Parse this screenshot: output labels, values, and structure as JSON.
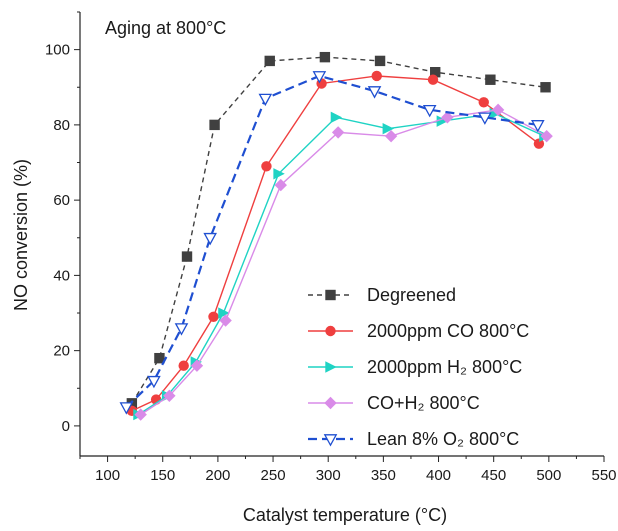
{
  "chart_data": {
    "type": "line",
    "title": "",
    "annotation": "Aging at 800°C",
    "xlabel": "Catalyst temperature (°C)",
    "ylabel": "NO conversion (%)",
    "xlim": [
      75,
      550
    ],
    "ylim": [
      -8,
      110
    ],
    "x_ticks": [
      100,
      150,
      200,
      250,
      300,
      350,
      400,
      450,
      500,
      550
    ],
    "y_ticks": [
      0,
      20,
      40,
      60,
      80,
      100
    ],
    "grid": false,
    "legend_position": "bottom-right",
    "series": [
      {
        "name": "Degreened",
        "color": "#404040",
        "line_style": "short-dash",
        "marker": "square",
        "x": [
          122,
          147,
          172,
          197,
          247,
          297,
          347,
          397,
          447,
          497
        ],
        "y": [
          6,
          18,
          45,
          80,
          97,
          98,
          97,
          94,
          92,
          90
        ]
      },
      {
        "name": "2000ppm CO 800°C",
        "color": "#ef3f3f",
        "line_style": "solid",
        "marker": "circle",
        "x": [
          122,
          144,
          169,
          196,
          244,
          294,
          344,
          395,
          441,
          491
        ],
        "y": [
          4,
          7,
          16,
          29,
          69,
          91,
          93,
          92,
          86,
          75
        ]
      },
      {
        "name": "2000ppm H₂ 800°C",
        "color": "#1fd3c4",
        "line_style": "solid",
        "marker": "triangle-right",
        "x": [
          128,
          154,
          180,
          205,
          255,
          307,
          354,
          403,
          451,
          496
        ],
        "y": [
          3,
          8,
          17,
          30,
          67,
          82,
          79,
          81,
          83,
          77
        ]
      },
      {
        "name": "CO+H₂ 800°C",
        "color": "#d98be8",
        "line_style": "solid",
        "marker": "diamond",
        "x": [
          130,
          156,
          181,
          207,
          257,
          309,
          357,
          408,
          454,
          498
        ],
        "y": [
          3,
          8,
          16,
          28,
          64,
          78,
          77,
          82,
          84,
          77
        ]
      },
      {
        "name": "Lean 8% O₂ 800°C",
        "color": "#1f4fd1",
        "line_style": "long-dash",
        "marker": "triangle-down-open",
        "x": [
          117,
          142,
          167,
          193,
          243,
          292,
          342,
          392,
          442,
          490
        ],
        "y": [
          5,
          12,
          26,
          50,
          87,
          93,
          89,
          84,
          82,
          80
        ]
      }
    ]
  }
}
